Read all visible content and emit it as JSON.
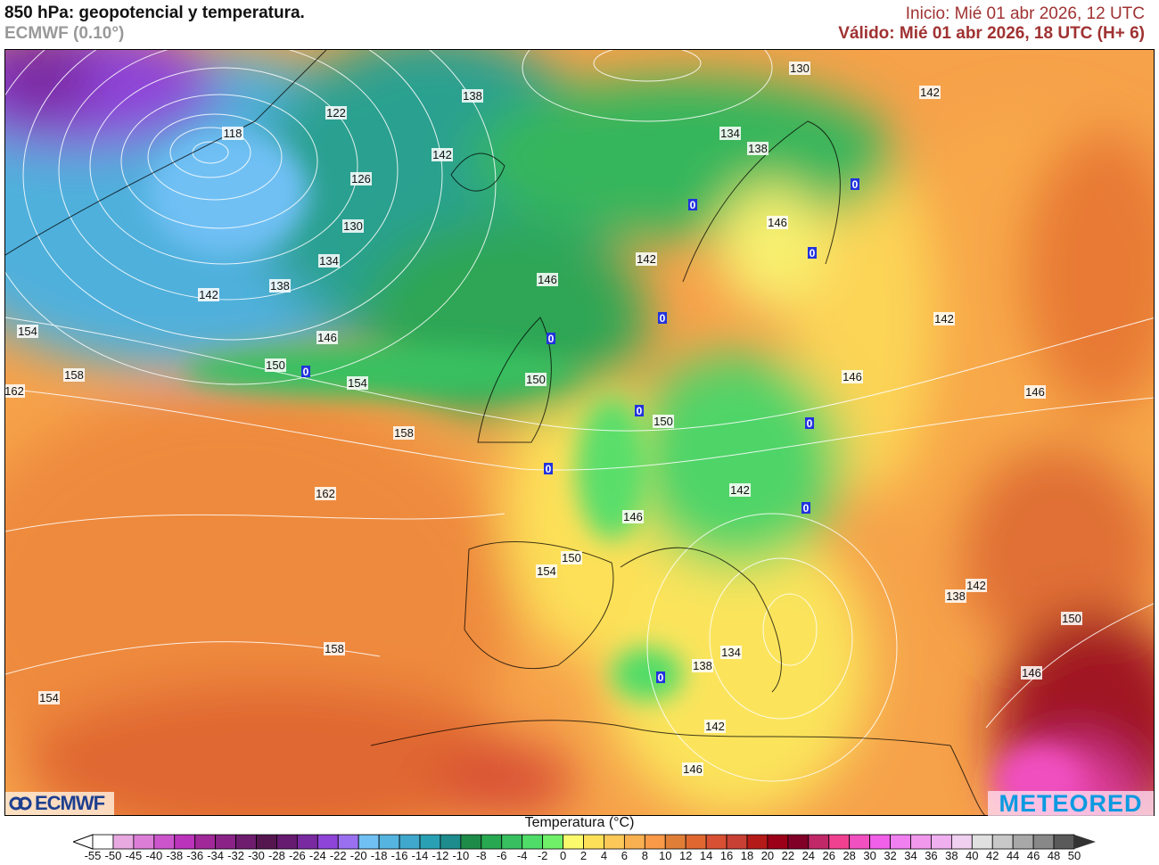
{
  "header": {
    "title": "850 hPa: geopotencial y temperatura.",
    "model": "ECMWF (0.10°)",
    "init": "Inicio: Mié 01 abr 2026, 12 UTC",
    "valid": "Válido: Mié 01 abr 2026, 18 UTC (H+ 6)"
  },
  "map": {
    "contour_labels": [
      "118",
      "122",
      "126",
      "130",
      "134",
      "138",
      "142",
      "146",
      "150",
      "154",
      "154",
      "158",
      "162",
      "158",
      "162",
      "158",
      "154",
      "138",
      "142",
      "130",
      "142",
      "134",
      "138",
      "146",
      "142",
      "146",
      "150",
      "150",
      "146",
      "142",
      "146",
      "142",
      "146",
      "150",
      "154",
      "142",
      "138",
      "150",
      "146",
      "134",
      "138",
      "142",
      "146"
    ],
    "zero_labels": [
      "0",
      "0",
      "0",
      "0",
      "0",
      "0",
      "0",
      "0",
      "0",
      "0",
      "0"
    ]
  },
  "logos": {
    "left": "ECMWF",
    "right": "METEORED"
  },
  "colorbar": {
    "title": "Temperatura (°C)",
    "labels": [
      "-55",
      "-50",
      "-45",
      "-40",
      "-38",
      "-36",
      "-34",
      "-32",
      "-30",
      "-28",
      "-26",
      "-24",
      "-22",
      "-20",
      "-18",
      "-16",
      "-14",
      "-12",
      "-10",
      "-8",
      "-6",
      "-4",
      "-2",
      "0",
      "2",
      "4",
      "6",
      "8",
      "10",
      "12",
      "14",
      "16",
      "18",
      "20",
      "22",
      "24",
      "26",
      "28",
      "30",
      "32",
      "34",
      "36",
      "38",
      "40",
      "42",
      "44",
      "46",
      "48",
      "50"
    ],
    "colors": [
      "#ffffff",
      "#e8a8e0",
      "#dc7ed8",
      "#cc55cc",
      "#bb33bb",
      "#a02898",
      "#8a2288",
      "#6e1c6e",
      "#551650",
      "#661a70",
      "#7a2aa0",
      "#8e44d8",
      "#9a70f0",
      "#70c0f4",
      "#55b4e0",
      "#40a8cc",
      "#2aa0b4",
      "#1e8c8c",
      "#1e8c48",
      "#28a850",
      "#38c060",
      "#50dc68",
      "#70f068",
      "#fafa6c",
      "#fde058",
      "#fcc858",
      "#f8b050",
      "#f89a48",
      "#e07e38",
      "#e06830",
      "#d85034",
      "#c84034",
      "#b41a18",
      "#9c0018",
      "#800028",
      "#c02868",
      "#f04090",
      "#f050c0",
      "#f060e8",
      "#f080f0",
      "#f098ec",
      "#f0b0f0",
      "#f0d0f0",
      "#e0e0e0",
      "#c8c8c8",
      "#a8a8a8",
      "#888888",
      "#5a5a5a"
    ]
  }
}
